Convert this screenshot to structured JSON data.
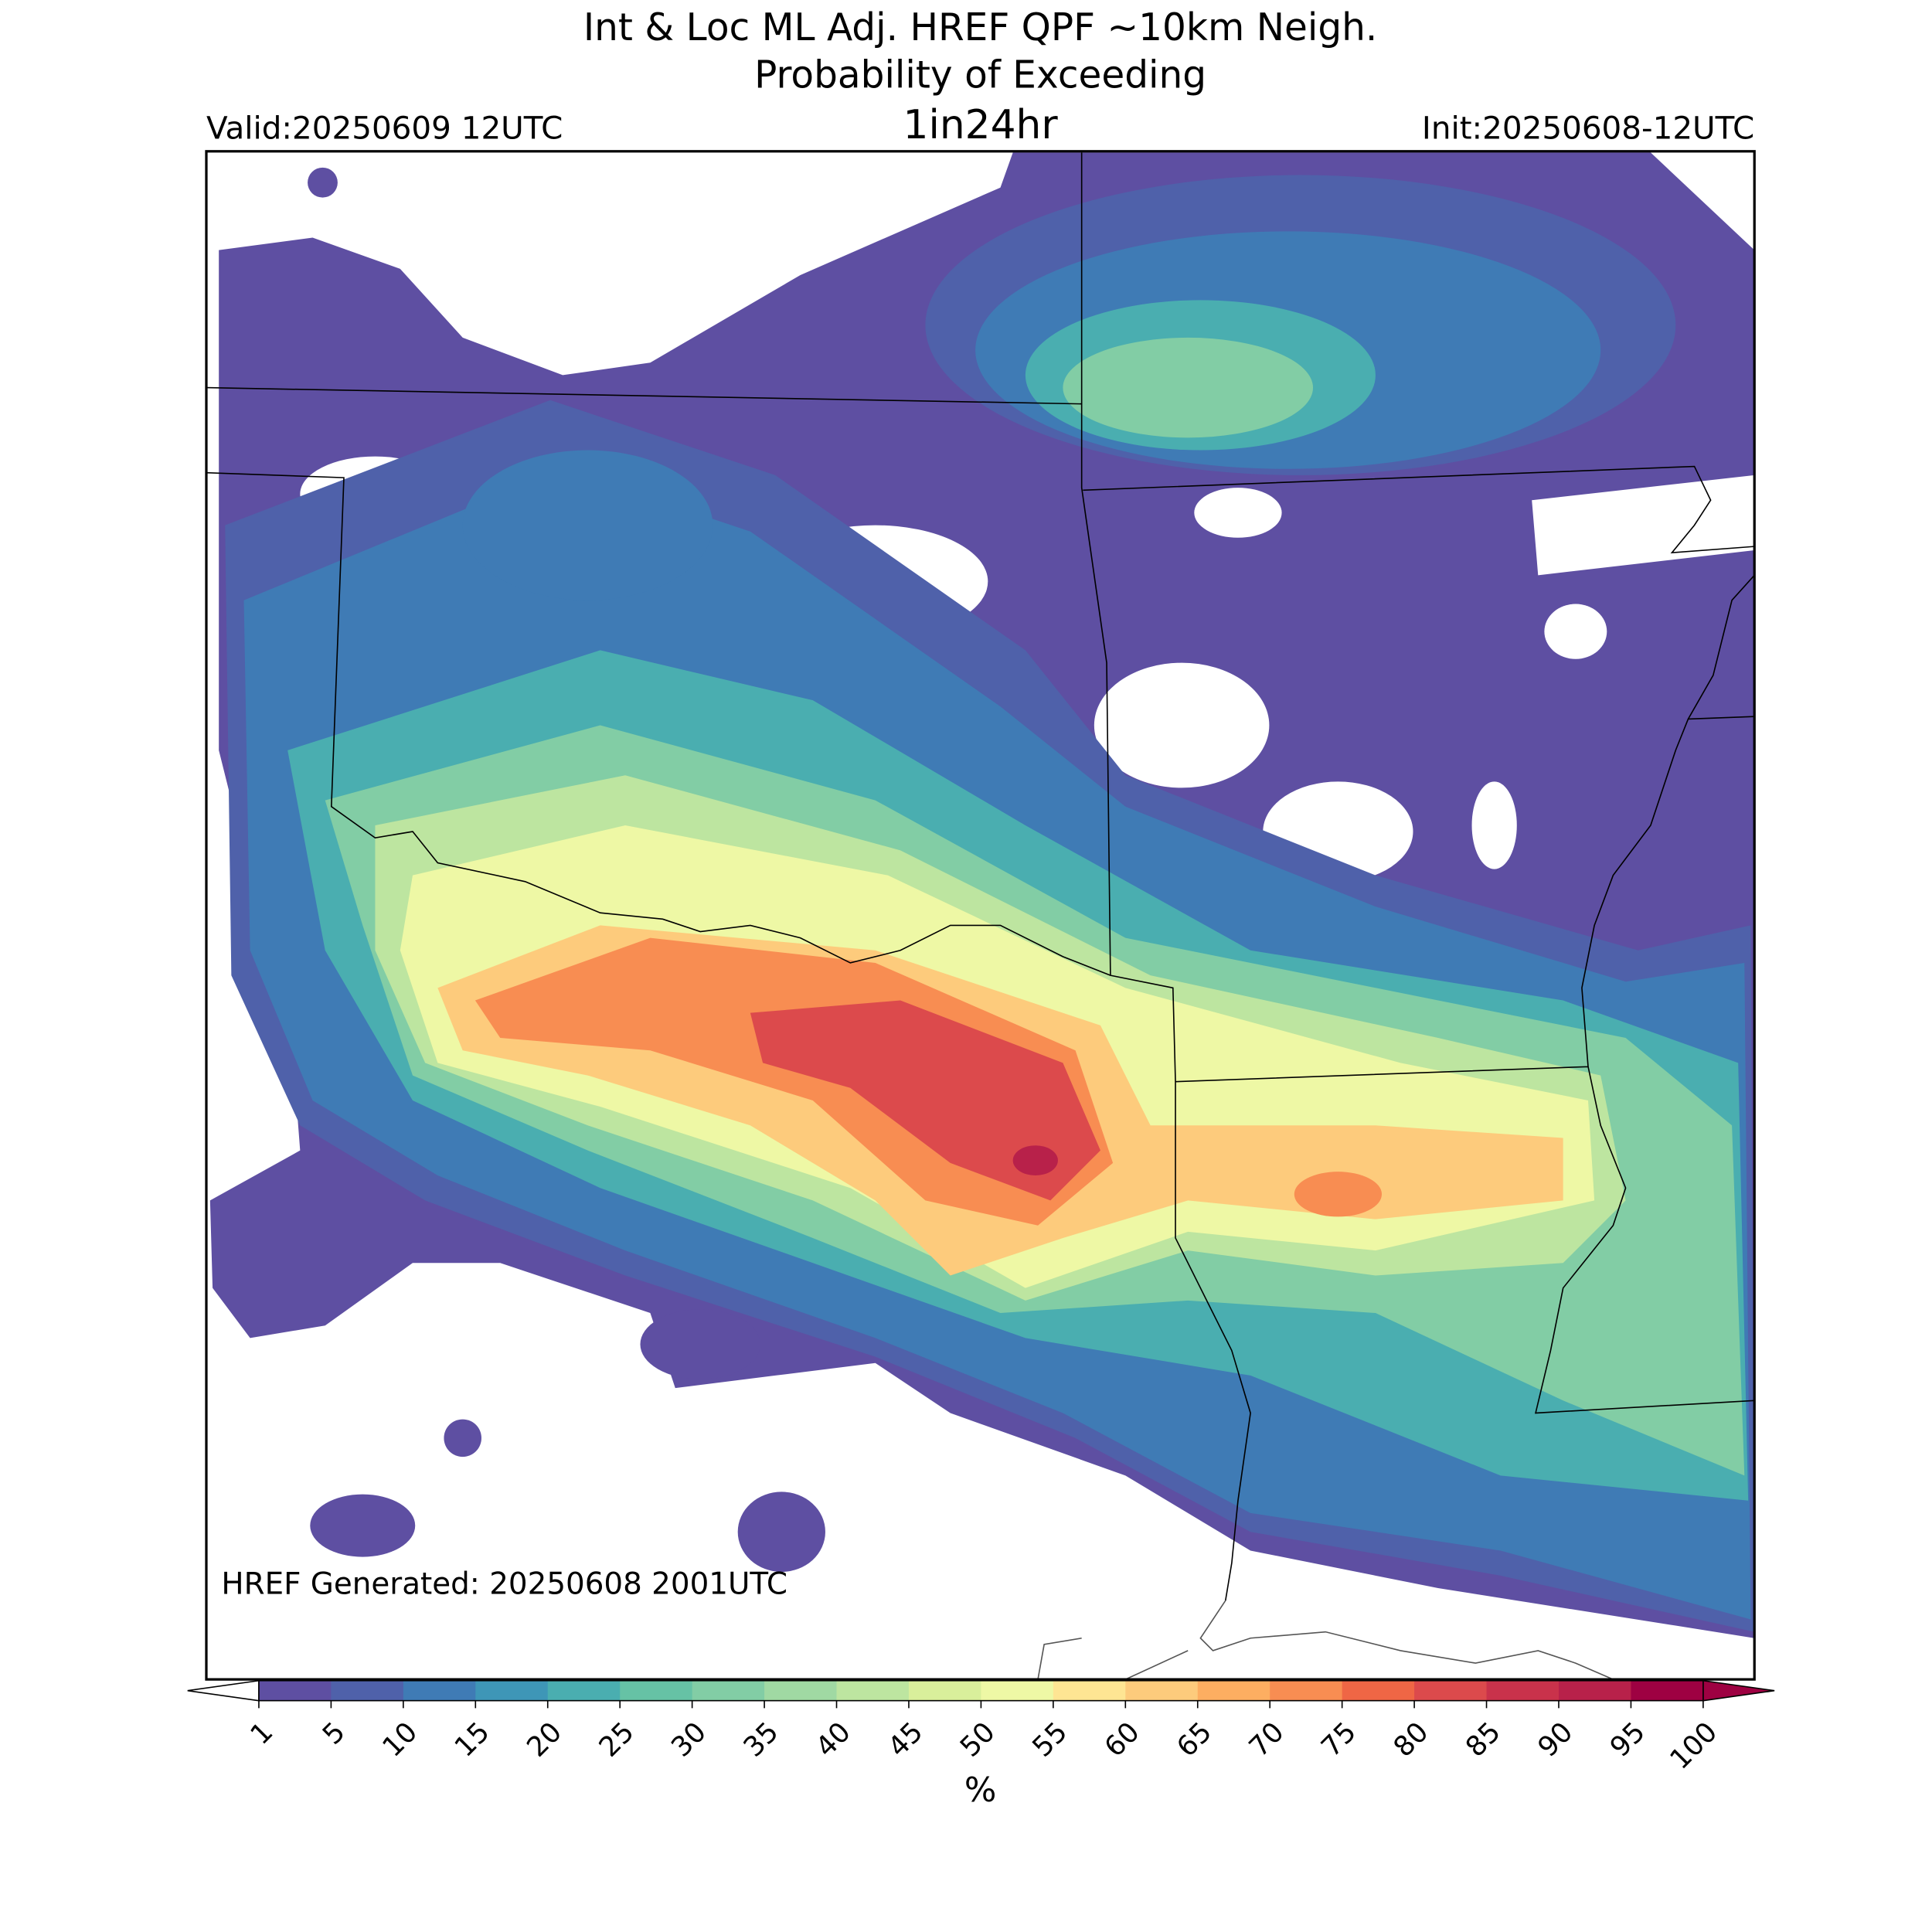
{
  "header": {
    "title_line1": "Int & Loc ML Adj. HREF QPF ~10km Neigh.",
    "title_line2": "Probability of Exceeding",
    "threshold": "1in24hr",
    "valid": "Valid:20250609 12UTC",
    "init": "Init:20250608-12UTC"
  },
  "footer": {
    "generated": "HREF Generated: 20250608 2001UTC"
  },
  "colorbar": {
    "label": "%",
    "levels": [
      1,
      5,
      10,
      15,
      20,
      25,
      30,
      35,
      40,
      45,
      50,
      55,
      60,
      65,
      70,
      75,
      80,
      85,
      90,
      95,
      100
    ],
    "colors": [
      "#5e4fa2",
      "#4f61aa",
      "#3f7bb5",
      "#3e96b7",
      "#4aaeb0",
      "#66c2a5",
      "#82cda5",
      "#a0d9a3",
      "#bde5a0",
      "#d9ef9b",
      "#eef8a5",
      "#fee593",
      "#fdcb7c",
      "#fdae61",
      "#f88d52",
      "#ef6645",
      "#dc4a4c",
      "#c9324b",
      "#b8214a",
      "#9e0142"
    ],
    "under_color": "#ffffff",
    "over_color": "#9e0142"
  }
}
